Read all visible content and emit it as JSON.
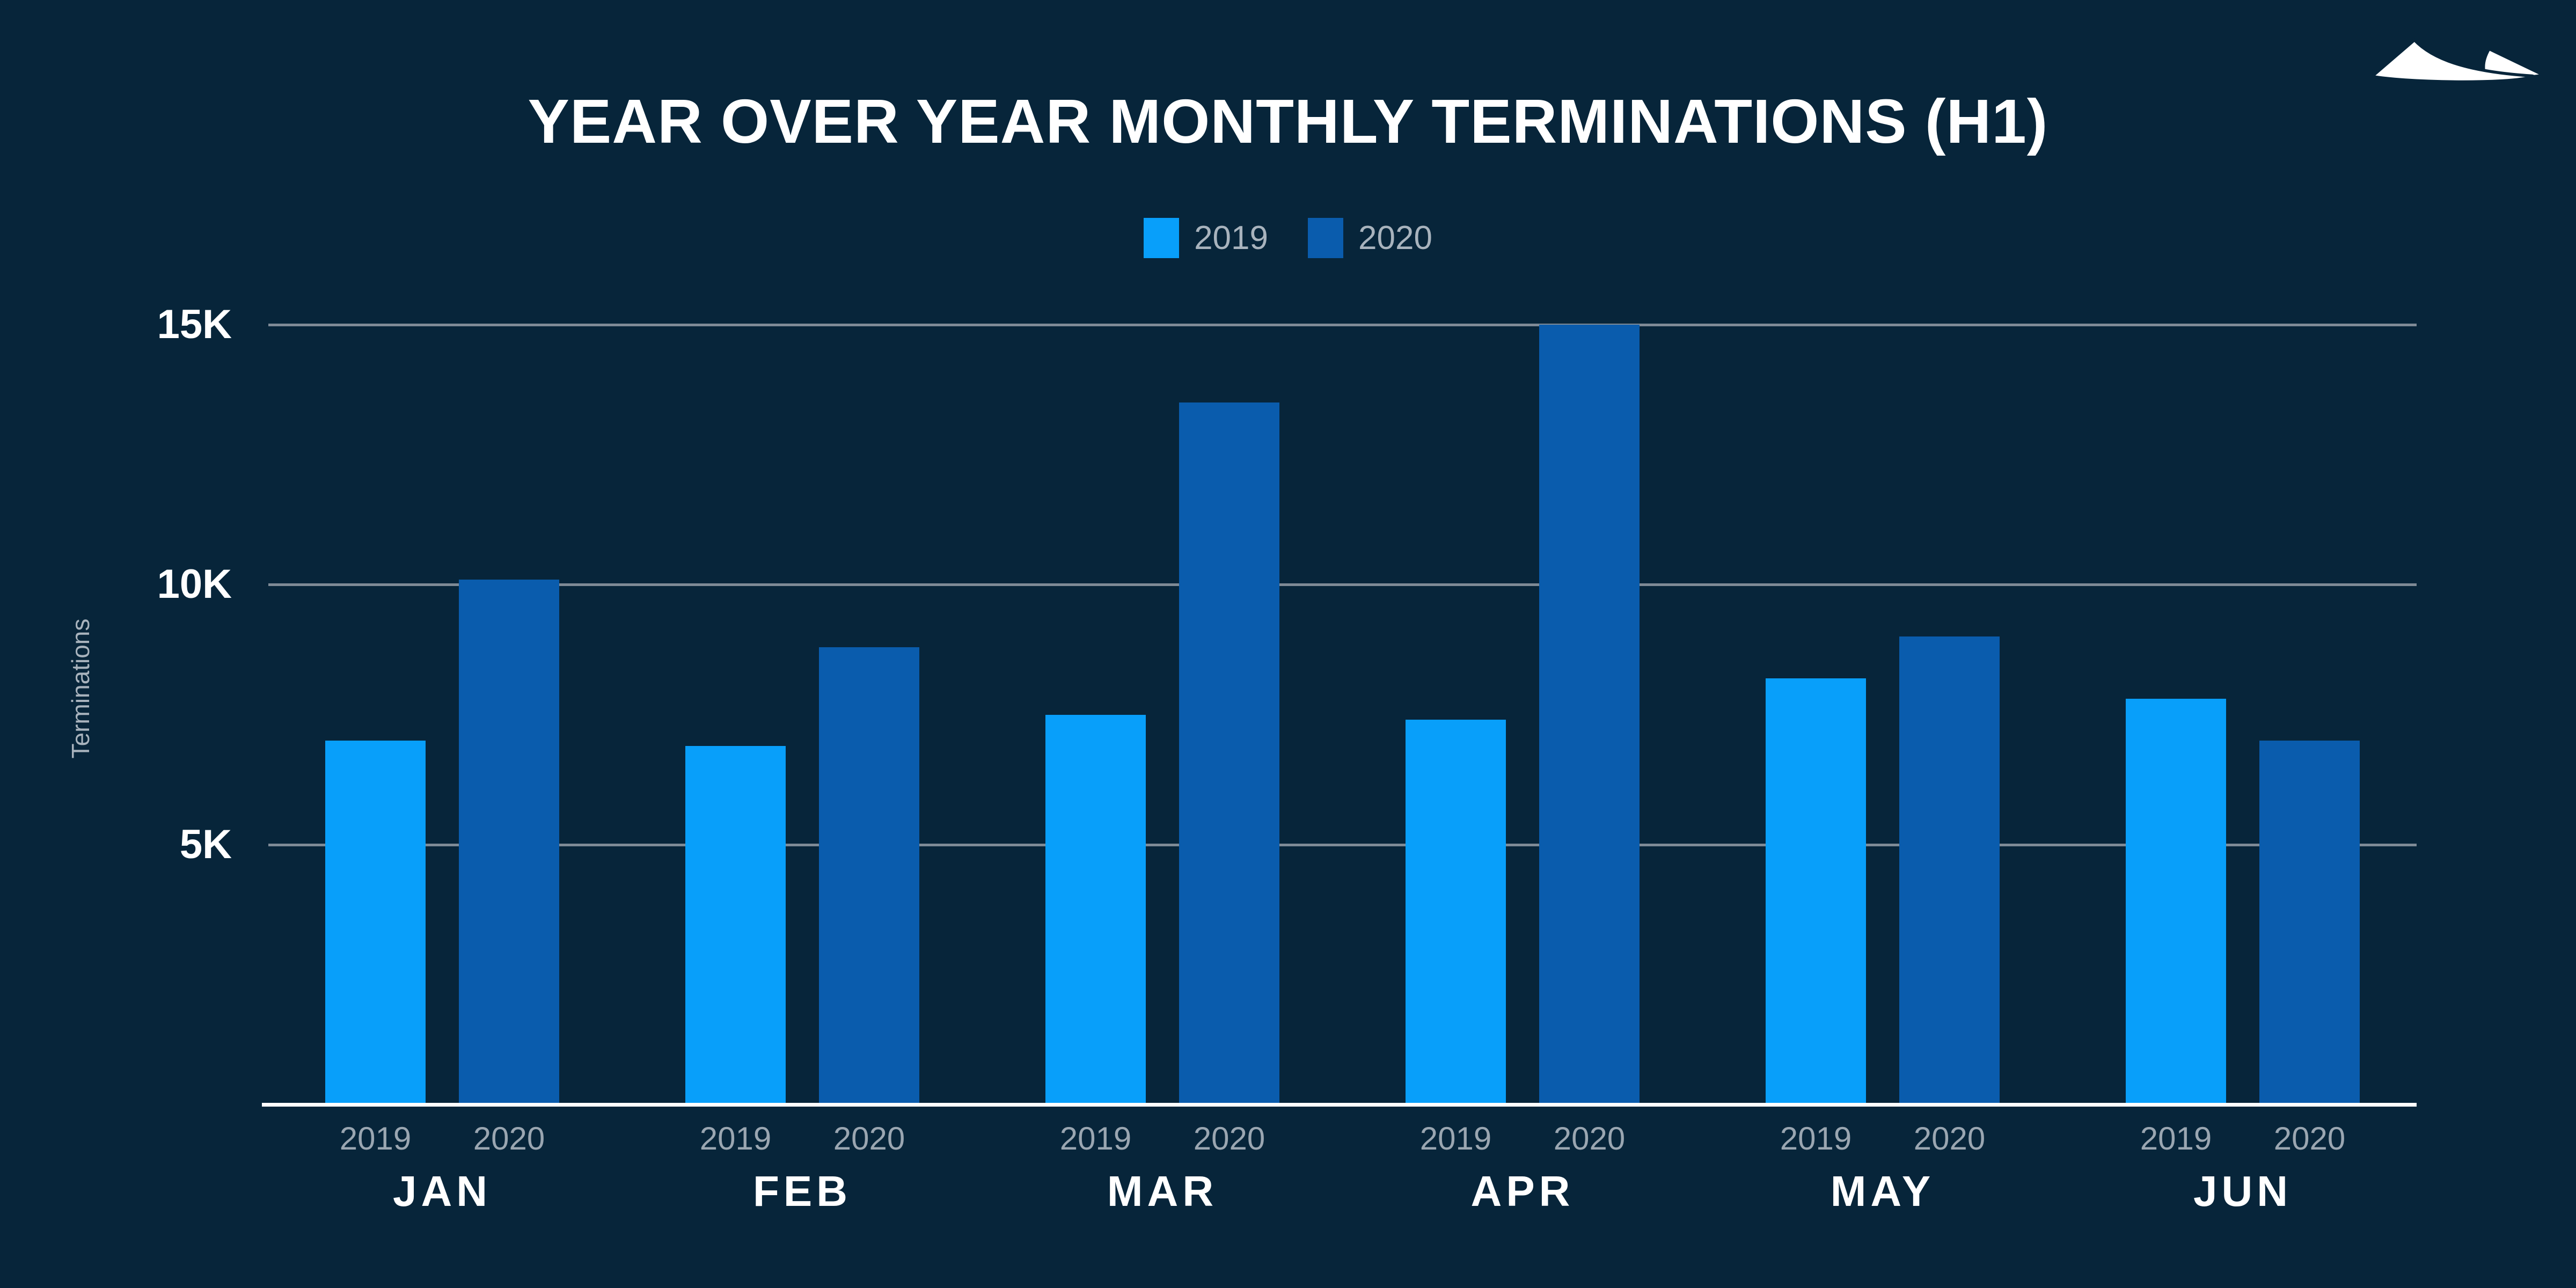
{
  "title": "YEAR OVER YEAR MONTHLY TERMINATIONS (H1)",
  "logo": {
    "name": "mountains-logo",
    "color": "#FFFFFF"
  },
  "colors": {
    "background": "#07253A",
    "title_text": "#FFFFFF",
    "gridline": "#7E8A96",
    "axis_line": "#FFFFFF",
    "ytick_text": "#FFFFFF",
    "year_label_text": "#9AA6B1",
    "month_label_text": "#FFFFFF",
    "legend_text": "#A8B3BD",
    "series_2019": "#089FFA",
    "series_2020": "#0A5CAD"
  },
  "chart_data": {
    "type": "bar",
    "title": "YEAR OVER YEAR MONTHLY TERMINATIONS (H1)",
    "ylabel": "Terminations",
    "xlabel": "",
    "categories": [
      "JAN",
      "FEB",
      "MAR",
      "APR",
      "MAY",
      "JUN"
    ],
    "series": [
      {
        "name": "2019",
        "color": "#089FFA",
        "values": [
          7000,
          6900,
          7500,
          7400,
          8200,
          7800
        ]
      },
      {
        "name": "2020",
        "color": "#0A5CAD",
        "values": [
          10100,
          8800,
          13500,
          15000,
          9000,
          7000
        ]
      }
    ],
    "ylim": [
      0,
      15000
    ],
    "yticks": [
      {
        "value": 5000,
        "label": "5K"
      },
      {
        "value": 10000,
        "label": "10K"
      },
      {
        "value": 15000,
        "label": "15K"
      }
    ],
    "grid": "horizontal",
    "legend_position": "top-center",
    "bar_sublabels": "series name under each bar"
  }
}
